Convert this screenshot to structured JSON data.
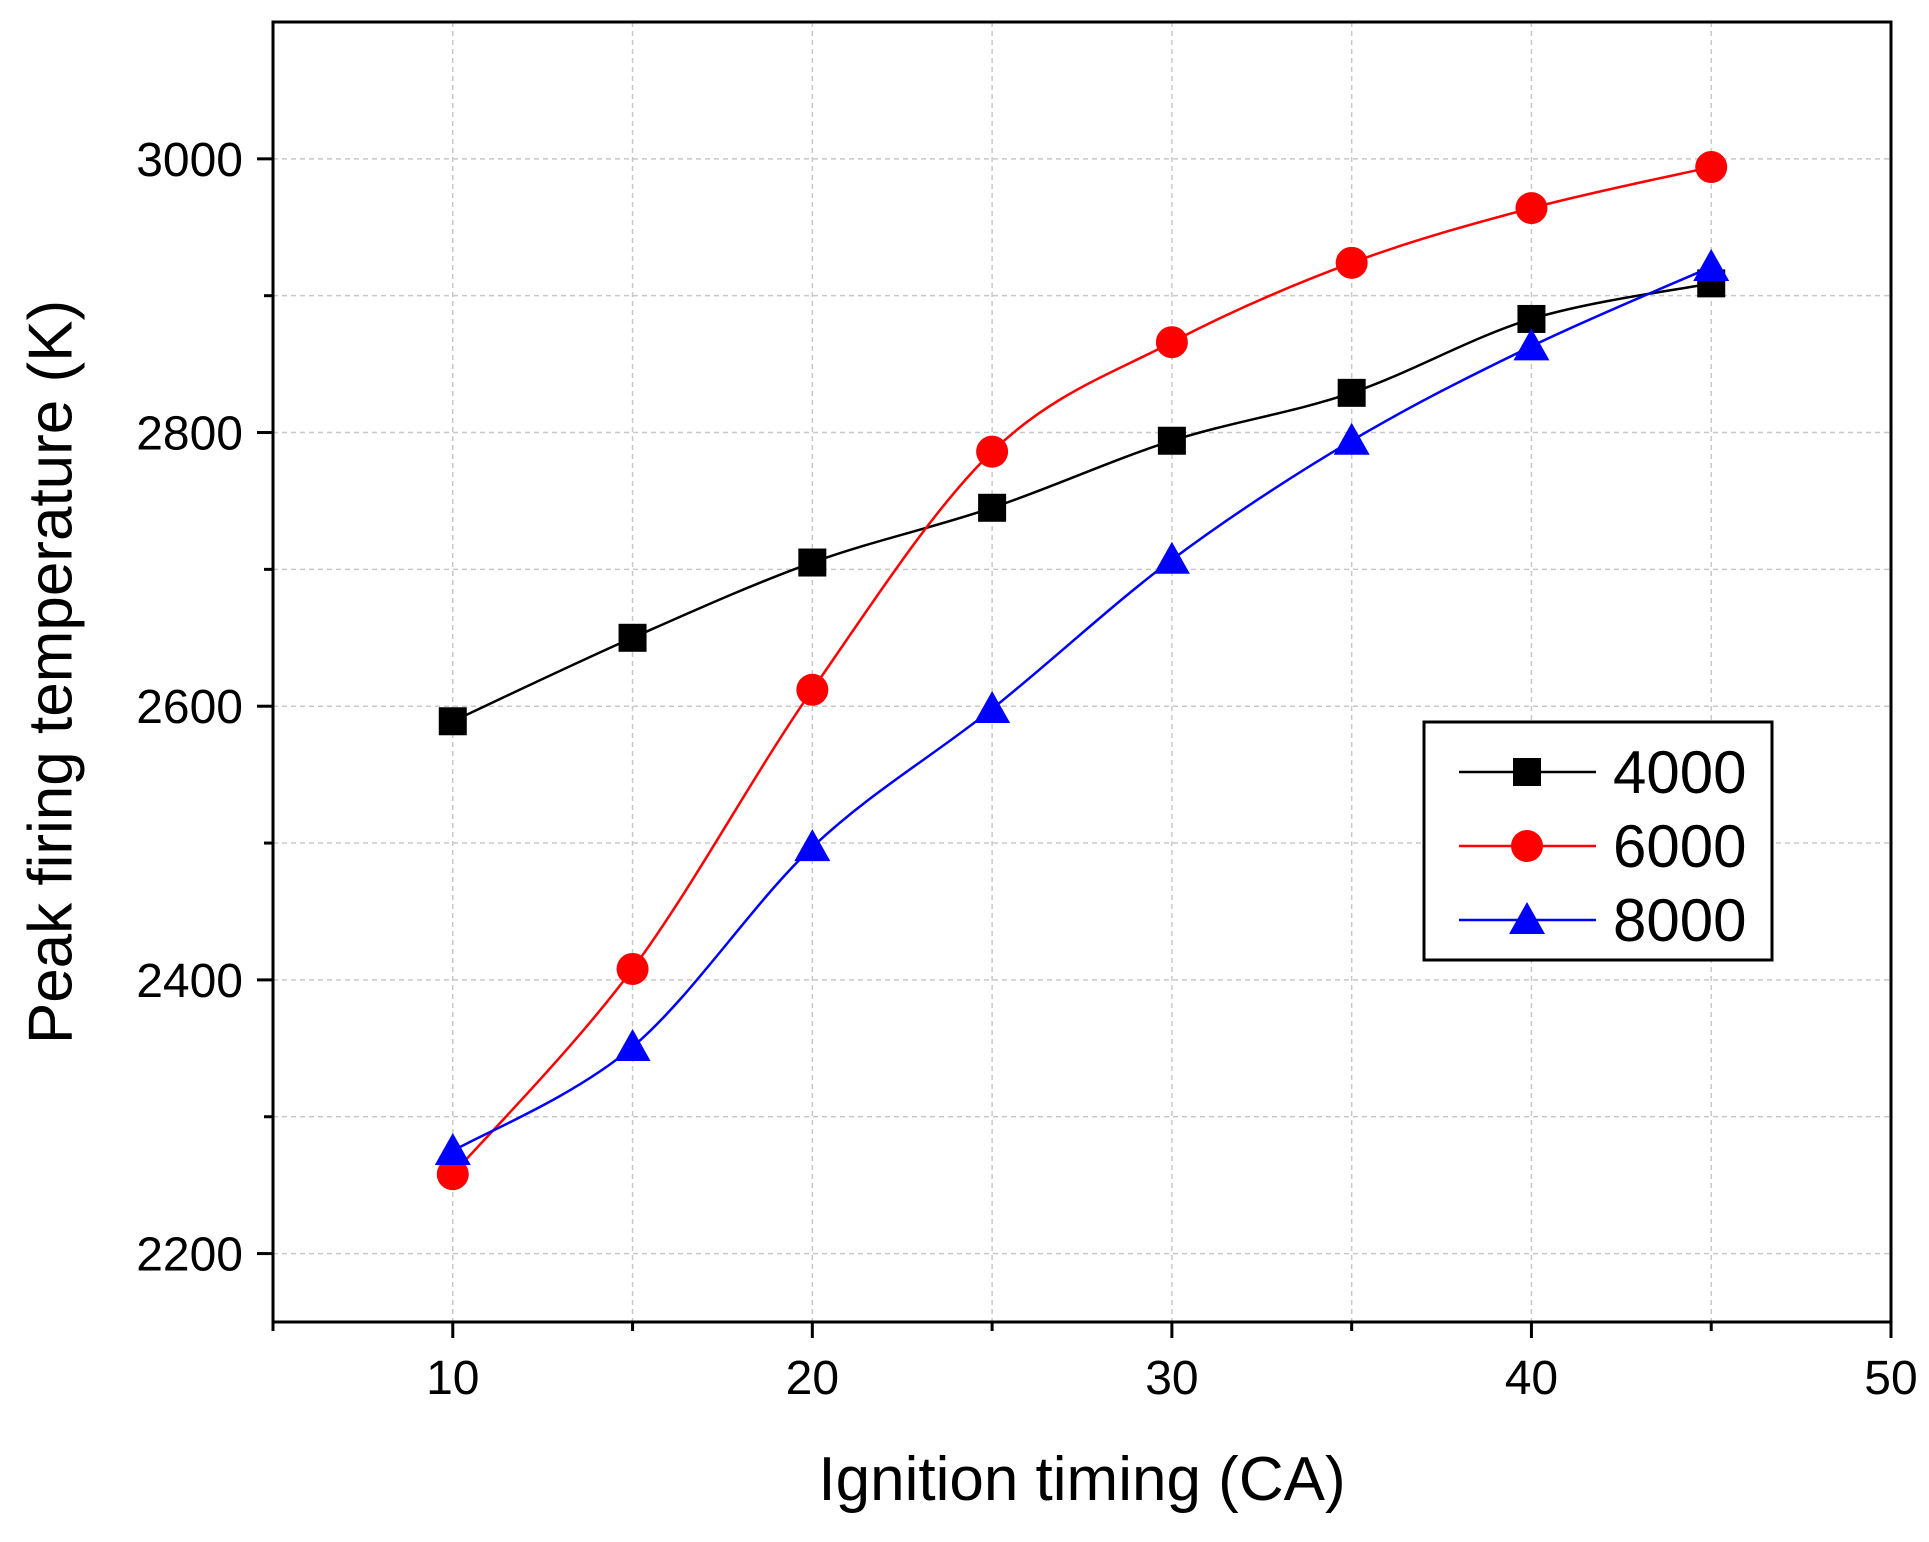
{
  "chart_data": {
    "type": "line",
    "title": "",
    "xlabel": "Ignition timing (CA)",
    "ylabel": "Peak firing temperature (K)",
    "xlim": [
      5,
      50
    ],
    "ylim": [
      2150,
      3100
    ],
    "x_ticks": [
      10,
      20,
      30,
      40,
      50
    ],
    "x_tick_labels": [
      "10",
      "20",
      "30",
      "40",
      "50"
    ],
    "x_minor_ticks": [
      5,
      15,
      25,
      35,
      45
    ],
    "y_ticks": [
      2200,
      2400,
      2600,
      2800,
      3000
    ],
    "y_tick_labels": [
      "2200",
      "2400",
      "2600",
      "2800",
      "3000"
    ],
    "y_minor_ticks": [
      2300,
      2500,
      2700,
      2900
    ],
    "grid": true,
    "legend_position": "right-middle",
    "x": [
      10,
      15,
      20,
      25,
      30,
      35,
      40,
      45
    ],
    "series": [
      {
        "name": "4000",
        "color": "#000000",
        "marker": "square",
        "values": [
          2589,
          2650,
          2705,
          2745,
          2794,
          2829,
          2883,
          2909
        ]
      },
      {
        "name": "6000",
        "color": "#ff0000",
        "marker": "circle",
        "values": [
          2258,
          2408,
          2612,
          2786,
          2866,
          2924,
          2964,
          2994
        ]
      },
      {
        "name": "8000",
        "color": "#0000ff",
        "marker": "triangle",
        "values": [
          2275,
          2351,
          2497,
          2598,
          2707,
          2794,
          2863,
          2921
        ]
      }
    ]
  }
}
